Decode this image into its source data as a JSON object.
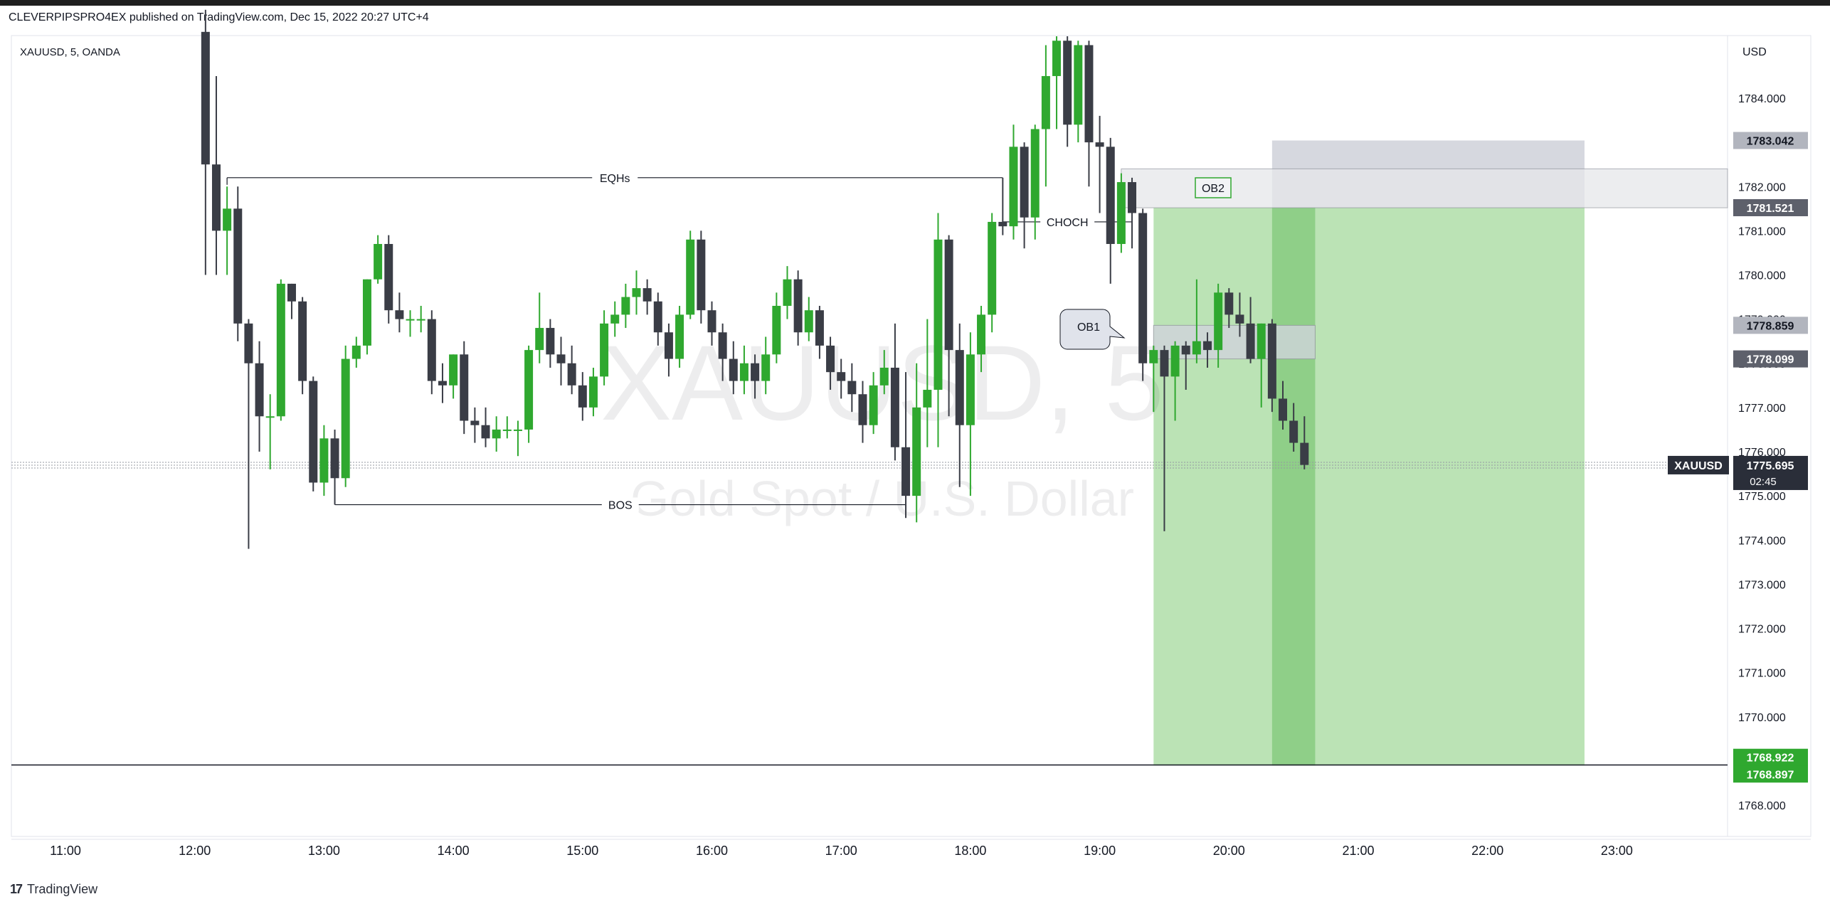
{
  "header": {
    "published_text": "CLEVERPIPSPRO4EX published on TradingView.com, Dec 15, 2022 20:27 UTC+4"
  },
  "footer": {
    "logo_glyph": "17",
    "brand": "TradingView"
  },
  "colors": {
    "up": "#2fa82f",
    "down": "#3a3d46",
    "target_zone": "#b7e1b1",
    "target_zone_dark": "#8fcf88",
    "stop_zone": "#d1d4dc",
    "ob_zone": "#e6e7ea"
  },
  "chart_data": {
    "type": "candlestick",
    "symbol": "XAUUSD, 5, OANDA",
    "watermark_symbol": "XAUUSD, 5",
    "watermark_description": "Gold Spot / U.S. Dollar",
    "currency_label": "USD",
    "y_ticks": [
      "1784.000",
      "1783.000",
      "1782.000",
      "1781.000",
      "1780.000",
      "1779.000",
      "1778.000",
      "1777.000",
      "1776.000",
      "1775.000",
      "1774.000",
      "1773.000",
      "1772.000",
      "1771.000",
      "1770.000",
      "1769.000",
      "1768.000"
    ],
    "y_range": [
      1767.5,
      1785.3
    ],
    "x_ticks": [
      "11:00",
      "12:00",
      "13:00",
      "14:00",
      "15:00",
      "16:00",
      "17:00",
      "18:00",
      "19:00",
      "20:00",
      "21:00",
      "22:00",
      "23:00"
    ],
    "candles": [
      {
        "t": "12:05",
        "o": 1785.5,
        "h": 1786.0,
        "l": 1780.0,
        "c": 1782.5
      },
      {
        "t": "12:10",
        "o": 1782.5,
        "h": 1784.5,
        "l": 1780.0,
        "c": 1781.0
      },
      {
        "t": "12:15",
        "o": 1781.0,
        "h": 1782.0,
        "l": 1780.0,
        "c": 1781.5
      },
      {
        "t": "12:20",
        "o": 1781.5,
        "h": 1782.0,
        "l": 1778.5,
        "c": 1778.9
      },
      {
        "t": "12:25",
        "o": 1778.9,
        "h": 1779.0,
        "l": 1773.8,
        "c": 1778.0
      },
      {
        "t": "12:30",
        "o": 1778.0,
        "h": 1778.5,
        "l": 1776.0,
        "c": 1776.8
      },
      {
        "t": "12:35",
        "o": 1776.8,
        "h": 1777.3,
        "l": 1775.6,
        "c": 1776.8
      },
      {
        "t": "12:40",
        "o": 1776.8,
        "h": 1779.9,
        "l": 1776.7,
        "c": 1779.8
      },
      {
        "t": "12:45",
        "o": 1779.8,
        "h": 1779.8,
        "l": 1779.0,
        "c": 1779.4
      },
      {
        "t": "12:50",
        "o": 1779.4,
        "h": 1779.5,
        "l": 1777.3,
        "c": 1777.6
      },
      {
        "t": "12:55",
        "o": 1777.6,
        "h": 1777.7,
        "l": 1775.1,
        "c": 1775.3
      },
      {
        "t": "13:00",
        "o": 1775.3,
        "h": 1776.6,
        "l": 1775.0,
        "c": 1776.3
      },
      {
        "t": "13:05",
        "o": 1776.3,
        "h": 1776.5,
        "l": 1774.8,
        "c": 1775.4
      },
      {
        "t": "13:10",
        "o": 1775.4,
        "h": 1778.4,
        "l": 1775.2,
        "c": 1778.1
      },
      {
        "t": "13:15",
        "o": 1778.1,
        "h": 1778.6,
        "l": 1777.9,
        "c": 1778.4
      },
      {
        "t": "13:20",
        "o": 1778.4,
        "h": 1779.9,
        "l": 1778.2,
        "c": 1779.9
      },
      {
        "t": "13:25",
        "o": 1779.9,
        "h": 1780.9,
        "l": 1779.8,
        "c": 1780.7
      },
      {
        "t": "13:30",
        "o": 1780.7,
        "h": 1780.9,
        "l": 1778.9,
        "c": 1779.2
      },
      {
        "t": "13:35",
        "o": 1779.2,
        "h": 1779.6,
        "l": 1778.7,
        "c": 1779.0
      },
      {
        "t": "13:40",
        "o": 1779.0,
        "h": 1779.2,
        "l": 1778.6,
        "c": 1779.0
      },
      {
        "t": "13:45",
        "o": 1779.0,
        "h": 1779.3,
        "l": 1778.7,
        "c": 1779.0
      },
      {
        "t": "13:50",
        "o": 1779.0,
        "h": 1779.2,
        "l": 1777.3,
        "c": 1777.6
      },
      {
        "t": "13:55",
        "o": 1777.6,
        "h": 1778.0,
        "l": 1777.1,
        "c": 1777.5
      },
      {
        "t": "14:00",
        "o": 1777.5,
        "h": 1778.2,
        "l": 1777.2,
        "c": 1778.2
      },
      {
        "t": "14:05",
        "o": 1778.2,
        "h": 1778.5,
        "l": 1776.4,
        "c": 1776.7
      },
      {
        "t": "14:10",
        "o": 1776.7,
        "h": 1777.0,
        "l": 1776.2,
        "c": 1776.6
      },
      {
        "t": "14:15",
        "o": 1776.6,
        "h": 1777.0,
        "l": 1776.1,
        "c": 1776.3
      },
      {
        "t": "14:20",
        "o": 1776.3,
        "h": 1776.8,
        "l": 1776.0,
        "c": 1776.5
      },
      {
        "t": "14:25",
        "o": 1776.5,
        "h": 1776.8,
        "l": 1776.3,
        "c": 1776.5
      },
      {
        "t": "14:30",
        "o": 1776.5,
        "h": 1776.7,
        "l": 1775.9,
        "c": 1776.5
      },
      {
        "t": "14:35",
        "o": 1776.5,
        "h": 1778.4,
        "l": 1776.2,
        "c": 1778.3
      },
      {
        "t": "14:40",
        "o": 1778.3,
        "h": 1779.6,
        "l": 1778.0,
        "c": 1778.8
      },
      {
        "t": "14:45",
        "o": 1778.8,
        "h": 1779.0,
        "l": 1777.9,
        "c": 1778.2
      },
      {
        "t": "14:50",
        "o": 1778.2,
        "h": 1778.6,
        "l": 1777.5,
        "c": 1778.0
      },
      {
        "t": "14:55",
        "o": 1778.0,
        "h": 1778.4,
        "l": 1777.3,
        "c": 1777.5
      },
      {
        "t": "15:00",
        "o": 1777.5,
        "h": 1777.8,
        "l": 1776.7,
        "c": 1777.0
      },
      {
        "t": "15:05",
        "o": 1777.0,
        "h": 1777.9,
        "l": 1776.8,
        "c": 1777.7
      },
      {
        "t": "15:10",
        "o": 1777.7,
        "h": 1779.2,
        "l": 1777.5,
        "c": 1778.9
      },
      {
        "t": "15:15",
        "o": 1778.9,
        "h": 1779.4,
        "l": 1778.6,
        "c": 1779.1
      },
      {
        "t": "15:20",
        "o": 1779.1,
        "h": 1779.8,
        "l": 1778.8,
        "c": 1779.5
      },
      {
        "t": "15:25",
        "o": 1779.5,
        "h": 1780.1,
        "l": 1779.1,
        "c": 1779.7
      },
      {
        "t": "15:30",
        "o": 1779.7,
        "h": 1779.9,
        "l": 1779.1,
        "c": 1779.4
      },
      {
        "t": "15:35",
        "o": 1779.4,
        "h": 1779.6,
        "l": 1778.4,
        "c": 1778.7
      },
      {
        "t": "15:40",
        "o": 1778.7,
        "h": 1778.9,
        "l": 1777.7,
        "c": 1778.1
      },
      {
        "t": "15:45",
        "o": 1778.1,
        "h": 1779.3,
        "l": 1777.9,
        "c": 1779.1
      },
      {
        "t": "15:50",
        "o": 1779.1,
        "h": 1781.0,
        "l": 1779.0,
        "c": 1780.8
      },
      {
        "t": "15:55",
        "o": 1780.8,
        "h": 1781.0,
        "l": 1778.9,
        "c": 1779.2
      },
      {
        "t": "16:00",
        "o": 1779.2,
        "h": 1779.4,
        "l": 1778.4,
        "c": 1778.7
      },
      {
        "t": "16:05",
        "o": 1778.7,
        "h": 1778.9,
        "l": 1777.6,
        "c": 1778.1
      },
      {
        "t": "16:10",
        "o": 1778.1,
        "h": 1778.5,
        "l": 1777.3,
        "c": 1777.6
      },
      {
        "t": "16:15",
        "o": 1777.6,
        "h": 1778.4,
        "l": 1777.3,
        "c": 1778.0
      },
      {
        "t": "16:20",
        "o": 1778.0,
        "h": 1778.2,
        "l": 1777.2,
        "c": 1777.6
      },
      {
        "t": "16:25",
        "o": 1777.6,
        "h": 1778.6,
        "l": 1777.3,
        "c": 1778.2
      },
      {
        "t": "16:30",
        "o": 1778.2,
        "h": 1779.6,
        "l": 1778.0,
        "c": 1779.3
      },
      {
        "t": "16:35",
        "o": 1779.3,
        "h": 1780.2,
        "l": 1779.0,
        "c": 1779.9
      },
      {
        "t": "16:40",
        "o": 1779.9,
        "h": 1780.1,
        "l": 1778.4,
        "c": 1778.7
      },
      {
        "t": "16:45",
        "o": 1778.7,
        "h": 1779.5,
        "l": 1778.5,
        "c": 1779.2
      },
      {
        "t": "16:50",
        "o": 1779.2,
        "h": 1779.3,
        "l": 1778.1,
        "c": 1778.4
      },
      {
        "t": "16:55",
        "o": 1778.4,
        "h": 1778.6,
        "l": 1777.4,
        "c": 1777.8
      },
      {
        "t": "17:00",
        "o": 1777.8,
        "h": 1778.1,
        "l": 1777.2,
        "c": 1777.6
      },
      {
        "t": "17:05",
        "o": 1777.6,
        "h": 1778.0,
        "l": 1776.9,
        "c": 1777.3
      },
      {
        "t": "17:10",
        "o": 1777.3,
        "h": 1777.6,
        "l": 1776.2,
        "c": 1776.6
      },
      {
        "t": "17:15",
        "o": 1776.6,
        "h": 1777.8,
        "l": 1776.4,
        "c": 1777.5
      },
      {
        "t": "17:20",
        "o": 1777.5,
        "h": 1778.3,
        "l": 1777.3,
        "c": 1777.9
      },
      {
        "t": "17:25",
        "o": 1777.9,
        "h": 1778.9,
        "l": 1775.8,
        "c": 1776.1
      },
      {
        "t": "17:30",
        "o": 1776.1,
        "h": 1777.8,
        "l": 1774.5,
        "c": 1775.0
      },
      {
        "t": "17:35",
        "o": 1775.0,
        "h": 1778.0,
        "l": 1774.4,
        "c": 1777.0
      },
      {
        "t": "17:40",
        "o": 1777.0,
        "h": 1779.0,
        "l": 1776.1,
        "c": 1777.4
      },
      {
        "t": "17:45",
        "o": 1777.4,
        "h": 1781.4,
        "l": 1776.1,
        "c": 1780.8
      },
      {
        "t": "17:50",
        "o": 1780.8,
        "h": 1780.9,
        "l": 1776.8,
        "c": 1778.3
      },
      {
        "t": "17:55",
        "o": 1778.3,
        "h": 1778.9,
        "l": 1775.2,
        "c": 1776.6
      },
      {
        "t": "18:00",
        "o": 1776.6,
        "h": 1778.7,
        "l": 1775.0,
        "c": 1778.2
      },
      {
        "t": "18:05",
        "o": 1778.2,
        "h": 1779.3,
        "l": 1777.8,
        "c": 1779.1
      },
      {
        "t": "18:10",
        "o": 1779.1,
        "h": 1781.4,
        "l": 1778.7,
        "c": 1781.2
      },
      {
        "t": "18:15",
        "o": 1781.2,
        "h": 1782.2,
        "l": 1780.9,
        "c": 1781.1
      },
      {
        "t": "18:20",
        "o": 1781.1,
        "h": 1783.4,
        "l": 1780.8,
        "c": 1782.9
      },
      {
        "t": "18:25",
        "o": 1782.9,
        "h": 1783.0,
        "l": 1780.6,
        "c": 1781.3
      },
      {
        "t": "18:30",
        "o": 1781.3,
        "h": 1783.4,
        "l": 1780.8,
        "c": 1783.3
      },
      {
        "t": "18:35",
        "o": 1783.3,
        "h": 1785.2,
        "l": 1782.0,
        "c": 1784.5
      },
      {
        "t": "18:40",
        "o": 1784.5,
        "h": 1785.4,
        "l": 1783.3,
        "c": 1785.3
      },
      {
        "t": "18:45",
        "o": 1785.3,
        "h": 1785.4,
        "l": 1782.9,
        "c": 1783.4
      },
      {
        "t": "18:50",
        "o": 1783.4,
        "h": 1785.3,
        "l": 1783.0,
        "c": 1785.2
      },
      {
        "t": "18:55",
        "o": 1785.2,
        "h": 1785.3,
        "l": 1782.0,
        "c": 1783.0
      },
      {
        "t": "19:00",
        "o": 1783.0,
        "h": 1783.6,
        "l": 1781.4,
        "c": 1782.9
      },
      {
        "t": "19:05",
        "o": 1782.9,
        "h": 1783.1,
        "l": 1779.8,
        "c": 1780.7
      },
      {
        "t": "19:10",
        "o": 1780.7,
        "h": 1782.3,
        "l": 1780.5,
        "c": 1782.1
      },
      {
        "t": "19:15",
        "o": 1782.1,
        "h": 1782.2,
        "l": 1780.6,
        "c": 1781.4
      },
      {
        "t": "19:20",
        "o": 1781.4,
        "h": 1781.5,
        "l": 1777.6,
        "c": 1778.0
      },
      {
        "t": "19:25",
        "o": 1778.0,
        "h": 1778.4,
        "l": 1776.9,
        "c": 1778.3
      },
      {
        "t": "19:30",
        "o": 1778.3,
        "h": 1778.4,
        "l": 1774.2,
        "c": 1777.7
      },
      {
        "t": "19:35",
        "o": 1777.7,
        "h": 1778.5,
        "l": 1776.7,
        "c": 1778.4
      },
      {
        "t": "19:40",
        "o": 1778.4,
        "h": 1778.5,
        "l": 1777.4,
        "c": 1778.2
      },
      {
        "t": "19:45",
        "o": 1778.2,
        "h": 1779.9,
        "l": 1778.0,
        "c": 1778.5
      },
      {
        "t": "19:50",
        "o": 1778.5,
        "h": 1778.7,
        "l": 1777.9,
        "c": 1778.3
      },
      {
        "t": "19:55",
        "o": 1778.3,
        "h": 1779.8,
        "l": 1777.9,
        "c": 1779.6
      },
      {
        "t": "20:00",
        "o": 1779.6,
        "h": 1779.7,
        "l": 1778.8,
        "c": 1779.1
      },
      {
        "t": "20:05",
        "o": 1779.1,
        "h": 1779.6,
        "l": 1778.6,
        "c": 1778.9
      },
      {
        "t": "20:10",
        "o": 1778.9,
        "h": 1779.5,
        "l": 1778.0,
        "c": 1778.1
      },
      {
        "t": "20:15",
        "o": 1778.1,
        "h": 1778.9,
        "l": 1777.0,
        "c": 1778.9
      },
      {
        "t": "20:20",
        "o": 1778.9,
        "h": 1779.0,
        "l": 1776.9,
        "c": 1777.2
      },
      {
        "t": "20:25",
        "o": 1777.2,
        "h": 1777.6,
        "l": 1776.5,
        "c": 1776.7
      },
      {
        "t": "20:30",
        "o": 1776.7,
        "h": 1777.1,
        "l": 1776.0,
        "c": 1776.2
      },
      {
        "t": "20:35",
        "o": 1776.2,
        "h": 1776.8,
        "l": 1775.6,
        "c": 1775.7
      }
    ],
    "levels": [
      {
        "label": "EQHs",
        "price": 1782.2,
        "from": "12:15",
        "to": "18:15"
      },
      {
        "label": "BOS",
        "price": 1774.8,
        "from": "13:05",
        "to": "17:30"
      },
      {
        "label": "CHOCH",
        "price": 1781.2,
        "from": "18:15",
        "to": "19:15"
      }
    ],
    "zones": [
      {
        "label": "OB2",
        "from_price": 1781.52,
        "to_price": 1782.4
      },
      {
        "label": "OB1",
        "from_price": 1778.099,
        "to_price": 1778.859
      }
    ],
    "position": {
      "type": "long",
      "entry": 1781.521,
      "stop": 1783.042,
      "target": 1768.897
    },
    "price_labels": [
      {
        "value": "1783.042",
        "style": "gray"
      },
      {
        "value": "1781.521",
        "style": "dark"
      },
      {
        "value": "1778.859",
        "style": "gray"
      },
      {
        "value": "1778.099",
        "style": "dark"
      },
      {
        "value": "1768.922",
        "style": "green"
      },
      {
        "value": "1768.897",
        "style": "green"
      }
    ],
    "current": {
      "symbol": "XAUUSD",
      "price": "1775.695",
      "countdown": "02:45",
      "value": 1775.695
    },
    "horizontal_line_price": 1768.91
  }
}
